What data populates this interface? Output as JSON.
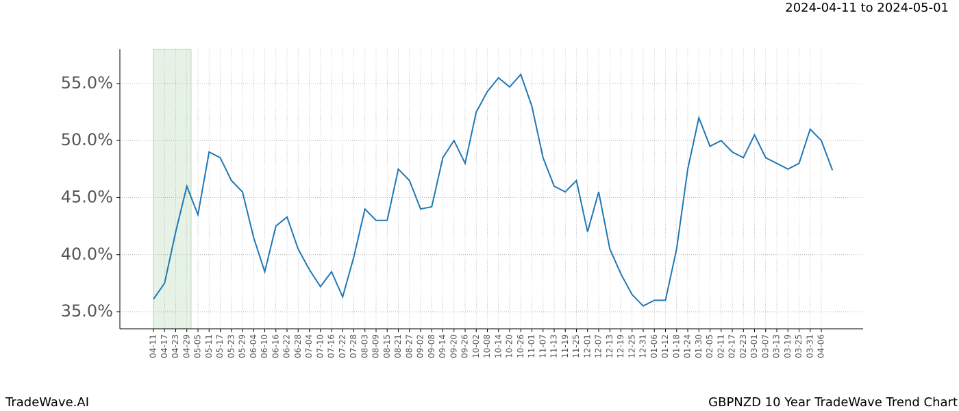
{
  "brand": "TradeWave.AI",
  "chart_data": {
    "type": "line",
    "title": "GBPNZD 10 Year TradeWave Trend Chart",
    "subtitle": "2024-04-11 to 2024-05-01",
    "categories": [
      "04-11",
      "04-17",
      "04-23",
      "04-29",
      "05-05",
      "05-11",
      "05-17",
      "05-23",
      "05-29",
      "06-04",
      "06-10",
      "06-16",
      "06-22",
      "06-28",
      "07-04",
      "07-10",
      "07-16",
      "07-22",
      "07-28",
      "08-03",
      "08-09",
      "08-15",
      "08-21",
      "08-27",
      "09-02",
      "09-08",
      "09-14",
      "09-20",
      "09-26",
      "10-02",
      "10-08",
      "10-14",
      "10-20",
      "10-26",
      "11-01",
      "11-07",
      "11-13",
      "11-19",
      "11-25",
      "12-01",
      "12-07",
      "12-13",
      "12-19",
      "12-25",
      "12-31",
      "01-06",
      "01-12",
      "01-18",
      "01-24",
      "01-30",
      "02-05",
      "02-11",
      "02-17",
      "02-23",
      "03-01",
      "03-07",
      "03-13",
      "03-19",
      "03-25",
      "03-31",
      "04-06",
      null
    ],
    "values": [
      36.1,
      37.5,
      42.0,
      46.0,
      43.5,
      49.0,
      48.5,
      46.5,
      45.5,
      41.5,
      38.5,
      42.5,
      43.3,
      40.5,
      38.7,
      37.2,
      38.5,
      36.3,
      39.8,
      44.0,
      43.0,
      43.0,
      47.5,
      46.5,
      44.0,
      44.2,
      48.5,
      50.0,
      48.0,
      52.5,
      54.3,
      55.5,
      54.7,
      55.8,
      53.0,
      48.5,
      46.0,
      45.5,
      46.5,
      42.0,
      45.5,
      40.5,
      38.3,
      36.5,
      35.5,
      36.0,
      36.0,
      40.5,
      47.5,
      52.0,
      49.5,
      50.0,
      49.0,
      48.5,
      50.5,
      48.5,
      48.0,
      47.5,
      48.0,
      51.0,
      50.0,
      47.4
    ],
    "color": "#1f77b4",
    "ylim": [
      33.5,
      58
    ],
    "yticks": [
      {
        "value": 35,
        "label": "35.0%"
      },
      {
        "value": 40,
        "label": "40.0%"
      },
      {
        "value": 45,
        "label": "45.0%"
      },
      {
        "value": 50,
        "label": "50.0%"
      },
      {
        "value": 55,
        "label": "55.0%"
      }
    ],
    "grid": true
  }
}
